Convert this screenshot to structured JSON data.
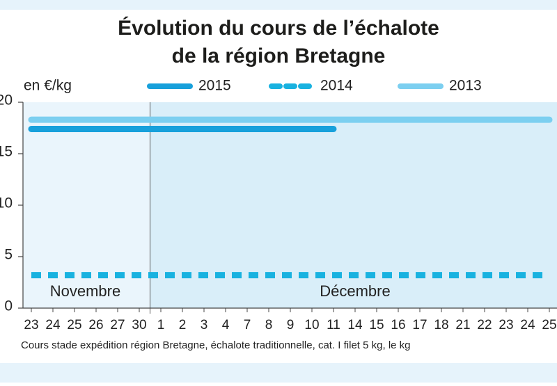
{
  "chart_data": {
    "type": "line",
    "title": [
      "Évolution du cours de l’échalote",
      "de la région Bretagne"
    ],
    "y_unit": "en €/kg",
    "note": "Cours stade expédition région Bretagne, échalote traditionnelle, cat. I filet 5 kg, le kg",
    "months": [
      "Novembre",
      "Décembre"
    ],
    "categories": [
      "23",
      "24",
      "25",
      "26",
      "27",
      "30",
      "1",
      "2",
      "3",
      "4",
      "7",
      "8",
      "9",
      "10",
      "11",
      "14",
      "15",
      "16",
      "17",
      "18",
      "21",
      "22",
      "23",
      "24",
      "25"
    ],
    "ylim": [
      0,
      20
    ],
    "yticks": [
      0,
      5,
      10,
      15,
      20
    ],
    "series": [
      {
        "name": "2015",
        "color": "#17a0db",
        "style": "solid",
        "values": [
          17.4,
          17.4,
          17.4,
          17.4,
          17.4,
          17.4,
          17.4,
          17.4,
          17.4,
          17.4,
          17.4,
          17.4,
          17.4,
          17.4,
          17.4,
          null,
          null,
          null,
          null,
          null,
          null,
          null,
          null,
          null,
          null
        ]
      },
      {
        "name": "2014",
        "color": "#19b2e0",
        "style": "dashed",
        "values": [
          3.2,
          3.2,
          3.2,
          3.2,
          3.2,
          3.2,
          3.2,
          3.2,
          3.2,
          3.2,
          3.2,
          3.2,
          3.2,
          3.2,
          3.2,
          3.2,
          3.2,
          3.2,
          3.2,
          3.2,
          3.2,
          3.2,
          3.2,
          3.2,
          3.2
        ]
      },
      {
        "name": "2013",
        "color": "#7ccff0",
        "style": "solid",
        "values": [
          18.3,
          18.3,
          18.3,
          18.3,
          18.3,
          18.3,
          18.3,
          18.3,
          18.3,
          18.3,
          18.3,
          18.3,
          18.3,
          18.3,
          18.3,
          18.3,
          18.3,
          18.3,
          18.3,
          18.3,
          18.3,
          18.3,
          18.3,
          18.3,
          18.3
        ]
      }
    ]
  }
}
